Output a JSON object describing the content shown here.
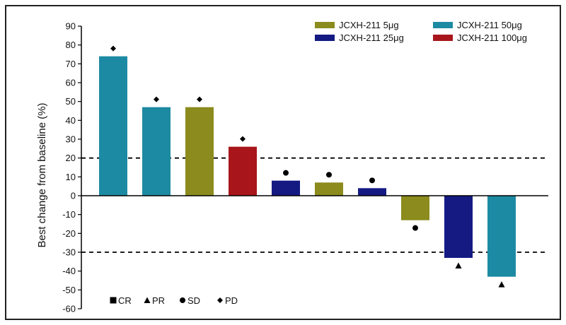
{
  "chart_data": {
    "type": "bar",
    "ylabel": "Best change from baseline  (%)",
    "xlabel": "",
    "title": "",
    "ylim": [
      -60,
      90
    ],
    "yticks": [
      90,
      80,
      70,
      60,
      50,
      40,
      30,
      20,
      10,
      0,
      -10,
      -20,
      -30,
      -40,
      -50,
      -60
    ],
    "reference_lines": [
      20,
      -30
    ],
    "series": [
      {
        "name": "JCXH-211 5μg",
        "color": "#8b8b1e"
      },
      {
        "name": "JCXH-211 50μg",
        "color": "#1d8aa3"
      },
      {
        "name": "JCXH-211 25μg",
        "color": "#141a82"
      },
      {
        "name": "JCXH-211 100μg",
        "color": "#a8161b"
      }
    ],
    "bars": [
      {
        "value": 74,
        "dose": "JCXH-211 50μg",
        "response": "PD"
      },
      {
        "value": 47,
        "dose": "JCXH-211 50μg",
        "response": "PD"
      },
      {
        "value": 47,
        "dose": "JCXH-211 5μg",
        "response": "PD"
      },
      {
        "value": 26,
        "dose": "JCXH-211 100μg",
        "response": "PD"
      },
      {
        "value": 8,
        "dose": "JCXH-211 25μg",
        "response": "SD"
      },
      {
        "value": 7,
        "dose": "JCXH-211 5μg",
        "response": "SD"
      },
      {
        "value": 4,
        "dose": "JCXH-211 25μg",
        "response": "SD"
      },
      {
        "value": -13,
        "dose": "JCXH-211 5μg",
        "response": "SD"
      },
      {
        "value": -33,
        "dose": "JCXH-211 25μg",
        "response": "PR"
      },
      {
        "value": -43,
        "dose": "JCXH-211 50μg",
        "response": "PR"
      }
    ],
    "response_legend": [
      {
        "code": "CR",
        "marker": "square"
      },
      {
        "code": "PR",
        "marker": "triangle"
      },
      {
        "code": "SD",
        "marker": "circle"
      },
      {
        "code": "PD",
        "marker": "diamond"
      }
    ]
  }
}
